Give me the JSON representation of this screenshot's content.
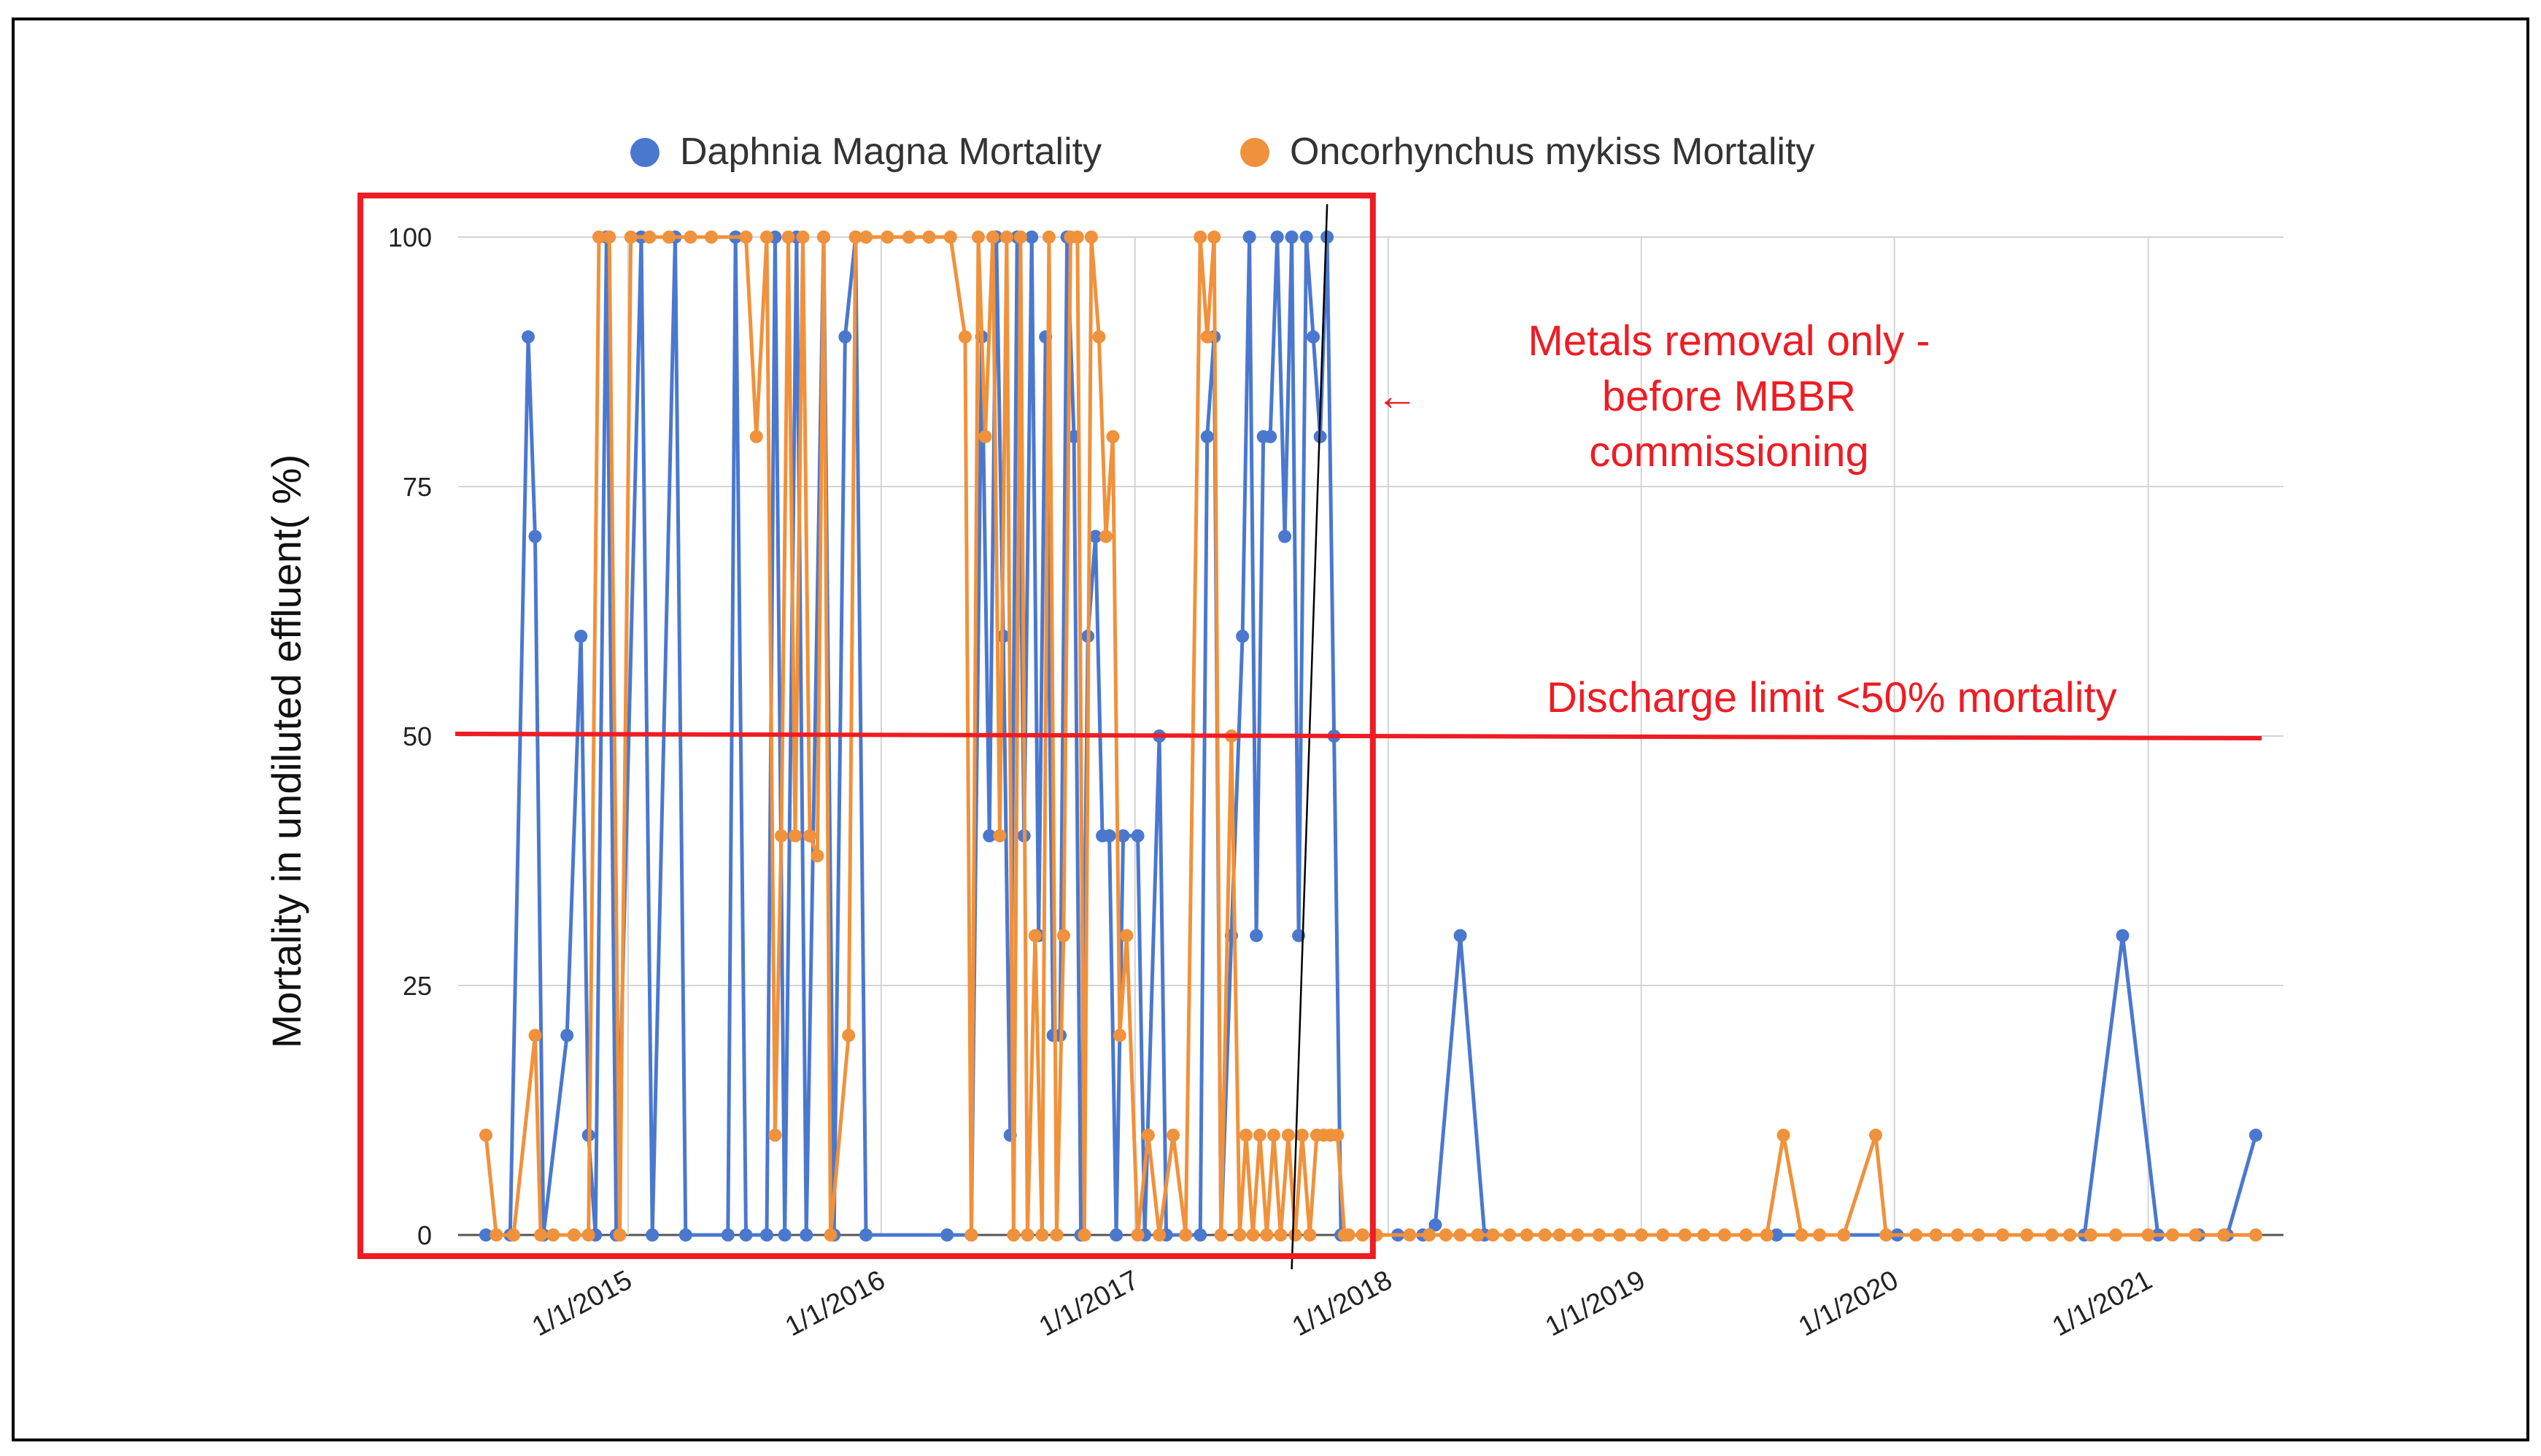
{
  "chart_data": {
    "type": "line",
    "title": "",
    "xlabel": "",
    "ylabel": "Mortality in undiluted effluent( %)",
    "ylim": [
      0,
      100
    ],
    "yticks": [
      "0",
      "25",
      "50",
      "75",
      "100"
    ],
    "xlim": [
      "2014-05-01",
      "2021-07-15"
    ],
    "xticks": [
      {
        "label": "1/1/2015",
        "date": "2015-01-01"
      },
      {
        "label": "1/1/2016",
        "date": "2016-01-01"
      },
      {
        "label": "1/1/2017",
        "date": "2017-01-01"
      },
      {
        "label": "1/1/2018",
        "date": "2018-01-01"
      },
      {
        "label": "1/1/2019",
        "date": "2019-01-01"
      },
      {
        "label": "1/1/2020",
        "date": "2020-01-01"
      },
      {
        "label": "1/1/2021",
        "date": "2021-01-01"
      }
    ],
    "legend_position": "top-center",
    "series": [
      {
        "name": "Daphnia Magna Mortality",
        "color": "#4a78cf",
        "points": [
          [
            "2014-06-10",
            0
          ],
          [
            "2014-07-15",
            0
          ],
          [
            "2014-08-10",
            90
          ],
          [
            "2014-08-20",
            70
          ],
          [
            "2014-09-01",
            0
          ],
          [
            "2014-10-05",
            20
          ],
          [
            "2014-10-25",
            60
          ],
          [
            "2014-11-05",
            10
          ],
          [
            "2014-11-15",
            0
          ],
          [
            "2014-12-01",
            100
          ],
          [
            "2014-12-15",
            0
          ],
          [
            "2015-01-20",
            100
          ],
          [
            "2015-02-05",
            0
          ],
          [
            "2015-03-10",
            100
          ],
          [
            "2015-03-25",
            0
          ],
          [
            "2015-05-25",
            0
          ],
          [
            "2015-06-05",
            100
          ],
          [
            "2015-06-20",
            0
          ],
          [
            "2015-07-20",
            0
          ],
          [
            "2015-08-01",
            100
          ],
          [
            "2015-08-15",
            0
          ],
          [
            "2015-09-01",
            100
          ],
          [
            "2015-09-15",
            0
          ],
          [
            "2015-10-10",
            100
          ],
          [
            "2015-10-25",
            0
          ],
          [
            "2015-11-10",
            90
          ],
          [
            "2015-11-25",
            100
          ],
          [
            "2015-12-10",
            0
          ],
          [
            "2016-04-05",
            0
          ],
          [
            "2016-05-10",
            0
          ],
          [
            "2016-05-25",
            90
          ],
          [
            "2016-06-05",
            40
          ],
          [
            "2016-06-15",
            100
          ],
          [
            "2016-06-25",
            60
          ],
          [
            "2016-07-05",
            10
          ],
          [
            "2016-07-15",
            100
          ],
          [
            "2016-07-25",
            40
          ],
          [
            "2016-08-05",
            100
          ],
          [
            "2016-08-15",
            30
          ],
          [
            "2016-08-25",
            90
          ],
          [
            "2016-09-05",
            20
          ],
          [
            "2016-09-15",
            20
          ],
          [
            "2016-09-25",
            100
          ],
          [
            "2016-10-05",
            80
          ],
          [
            "2016-10-15",
            0
          ],
          [
            "2016-10-25",
            60
          ],
          [
            "2016-11-05",
            70
          ],
          [
            "2016-11-15",
            40
          ],
          [
            "2016-11-25",
            40
          ],
          [
            "2016-12-05",
            0
          ],
          [
            "2016-12-15",
            40
          ],
          [
            "2017-01-05",
            40
          ],
          [
            "2017-01-15",
            0
          ],
          [
            "2017-02-05",
            50
          ],
          [
            "2017-02-15",
            0
          ],
          [
            "2017-04-05",
            0
          ],
          [
            "2017-04-15",
            80
          ],
          [
            "2017-04-25",
            90
          ],
          [
            "2017-05-05",
            0
          ],
          [
            "2017-05-20",
            30
          ],
          [
            "2017-06-05",
            60
          ],
          [
            "2017-06-15",
            100
          ],
          [
            "2017-06-25",
            30
          ],
          [
            "2017-07-05",
            80
          ],
          [
            "2017-07-15",
            80
          ],
          [
            "2017-07-25",
            100
          ],
          [
            "2017-08-05",
            70
          ],
          [
            "2017-08-15",
            100
          ],
          [
            "2017-08-25",
            30
          ],
          [
            "2017-09-05",
            100
          ],
          [
            "2017-09-15",
            90
          ],
          [
            "2017-09-25",
            80
          ],
          [
            "2017-10-05",
            100
          ],
          [
            "2017-10-15",
            50
          ],
          [
            "2017-10-25",
            0
          ],
          [
            "2018-01-15",
            0
          ],
          [
            "2018-02-20",
            0
          ],
          [
            "2018-03-10",
            1
          ],
          [
            "2018-04-15",
            30
          ],
          [
            "2018-05-20",
            0
          ],
          [
            "2019-07-15",
            0
          ],
          [
            "2020-01-05",
            0
          ],
          [
            "2020-10-01",
            0
          ],
          [
            "2020-11-25",
            30
          ],
          [
            "2021-01-15",
            0
          ],
          [
            "2021-03-15",
            0
          ],
          [
            "2021-04-25",
            0
          ],
          [
            "2021-06-05",
            10
          ]
        ]
      },
      {
        "name": "Oncorhynchus mykiss Mortality",
        "color": "#f0913b",
        "points": [
          [
            "2014-06-10",
            10
          ],
          [
            "2014-06-25",
            0
          ],
          [
            "2014-07-20",
            0
          ],
          [
            "2014-08-20",
            20
          ],
          [
            "2014-08-28",
            0
          ],
          [
            "2014-09-15",
            0
          ],
          [
            "2014-10-15",
            0
          ],
          [
            "2014-11-05",
            0
          ],
          [
            "2014-11-20",
            100
          ],
          [
            "2014-12-05",
            100
          ],
          [
            "2014-12-20",
            0
          ],
          [
            "2015-01-05",
            100
          ],
          [
            "2015-02-01",
            100
          ],
          [
            "2015-03-01",
            100
          ],
          [
            "2015-04-01",
            100
          ],
          [
            "2015-05-01",
            100
          ],
          [
            "2015-06-20",
            100
          ],
          [
            "2015-07-05",
            80
          ],
          [
            "2015-07-20",
            100
          ],
          [
            "2015-08-01",
            10
          ],
          [
            "2015-08-10",
            40
          ],
          [
            "2015-08-20",
            100
          ],
          [
            "2015-08-30",
            40
          ],
          [
            "2015-09-10",
            100
          ],
          [
            "2015-09-20",
            40
          ],
          [
            "2015-10-01",
            38
          ],
          [
            "2015-10-10",
            100
          ],
          [
            "2015-10-20",
            0
          ],
          [
            "2015-11-15",
            20
          ],
          [
            "2015-11-25",
            100
          ],
          [
            "2015-12-10",
            100
          ],
          [
            "2016-01-10",
            100
          ],
          [
            "2016-02-10",
            100
          ],
          [
            "2016-03-10",
            100
          ],
          [
            "2016-04-10",
            100
          ],
          [
            "2016-05-01",
            90
          ],
          [
            "2016-05-10",
            0
          ],
          [
            "2016-05-20",
            100
          ],
          [
            "2016-05-30",
            80
          ],
          [
            "2016-06-10",
            100
          ],
          [
            "2016-06-20",
            40
          ],
          [
            "2016-06-30",
            100
          ],
          [
            "2016-07-10",
            0
          ],
          [
            "2016-07-20",
            100
          ],
          [
            "2016-07-30",
            0
          ],
          [
            "2016-08-10",
            30
          ],
          [
            "2016-08-20",
            0
          ],
          [
            "2016-08-30",
            100
          ],
          [
            "2016-09-10",
            0
          ],
          [
            "2016-09-20",
            30
          ],
          [
            "2016-09-30",
            100
          ],
          [
            "2016-10-10",
            100
          ],
          [
            "2016-10-20",
            0
          ],
          [
            "2016-10-30",
            100
          ],
          [
            "2016-11-10",
            90
          ],
          [
            "2016-11-20",
            70
          ],
          [
            "2016-11-30",
            80
          ],
          [
            "2016-12-10",
            20
          ],
          [
            "2016-12-20",
            30
          ],
          [
            "2017-01-05",
            0
          ],
          [
            "2017-01-20",
            10
          ],
          [
            "2017-02-05",
            0
          ],
          [
            "2017-02-25",
            10
          ],
          [
            "2017-03-15",
            0
          ],
          [
            "2017-04-05",
            100
          ],
          [
            "2017-04-15",
            90
          ],
          [
            "2017-04-25",
            100
          ],
          [
            "2017-05-05",
            0
          ],
          [
            "2017-05-20",
            50
          ],
          [
            "2017-06-01",
            0
          ],
          [
            "2017-06-10",
            10
          ],
          [
            "2017-06-20",
            0
          ],
          [
            "2017-06-30",
            10
          ],
          [
            "2017-07-10",
            0
          ],
          [
            "2017-07-20",
            10
          ],
          [
            "2017-07-30",
            0
          ],
          [
            "2017-08-10",
            10
          ],
          [
            "2017-08-20",
            0
          ],
          [
            "2017-08-30",
            10
          ],
          [
            "2017-09-10",
            0
          ],
          [
            "2017-09-20",
            10
          ],
          [
            "2017-09-30",
            10
          ],
          [
            "2017-10-10",
            10
          ],
          [
            "2017-10-20",
            10
          ],
          [
            "2017-10-30",
            0
          ],
          [
            "2017-11-05",
            0
          ],
          [
            "2017-11-25",
            0
          ],
          [
            "2017-12-15",
            0
          ],
          [
            "2018-02-01",
            0
          ],
          [
            "2018-03-01",
            0
          ],
          [
            "2018-03-25",
            0
          ],
          [
            "2018-04-15",
            0
          ],
          [
            "2018-05-10",
            0
          ],
          [
            "2018-06-01",
            0
          ],
          [
            "2018-06-25",
            0
          ],
          [
            "2018-07-20",
            0
          ],
          [
            "2018-08-15",
            0
          ],
          [
            "2018-09-05",
            0
          ],
          [
            "2018-10-01",
            0
          ],
          [
            "2018-11-01",
            0
          ],
          [
            "2018-12-01",
            0
          ],
          [
            "2019-01-01",
            0
          ],
          [
            "2019-02-01",
            0
          ],
          [
            "2019-03-05",
            0
          ],
          [
            "2019-04-01",
            0
          ],
          [
            "2019-05-01",
            0
          ],
          [
            "2019-06-01",
            0
          ],
          [
            "2019-07-01",
            0
          ],
          [
            "2019-07-25",
            10
          ],
          [
            "2019-08-20",
            0
          ],
          [
            "2019-09-15",
            0
          ],
          [
            "2019-10-20",
            0
          ],
          [
            "2019-12-05",
            10
          ],
          [
            "2019-12-20",
            0
          ],
          [
            "2020-02-01",
            0
          ],
          [
            "2020-03-01",
            0
          ],
          [
            "2020-04-01",
            0
          ],
          [
            "2020-05-01",
            0
          ],
          [
            "2020-06-05",
            0
          ],
          [
            "2020-07-10",
            0
          ],
          [
            "2020-08-15",
            0
          ],
          [
            "2020-09-10",
            0
          ],
          [
            "2020-10-10",
            0
          ],
          [
            "2020-11-15",
            0
          ],
          [
            "2021-01-01",
            0
          ],
          [
            "2021-02-05",
            0
          ],
          [
            "2021-03-10",
            0
          ],
          [
            "2021-04-20",
            0
          ],
          [
            "2021-06-05",
            0
          ]
        ]
      }
    ]
  },
  "annotations": {
    "box_label_lines": [
      "Metals removal only -",
      "before MBBR",
      "commissioning"
    ],
    "arrow_symbol": "←",
    "discharge_limit_label": "Discharge limit <50% mortality",
    "discharge_limit_value": 50,
    "box_end_date": "2017-12-31",
    "marker_line_dates": [
      "2017-08-15",
      "2017-10-05"
    ],
    "accent_color": "#ee1c24"
  }
}
